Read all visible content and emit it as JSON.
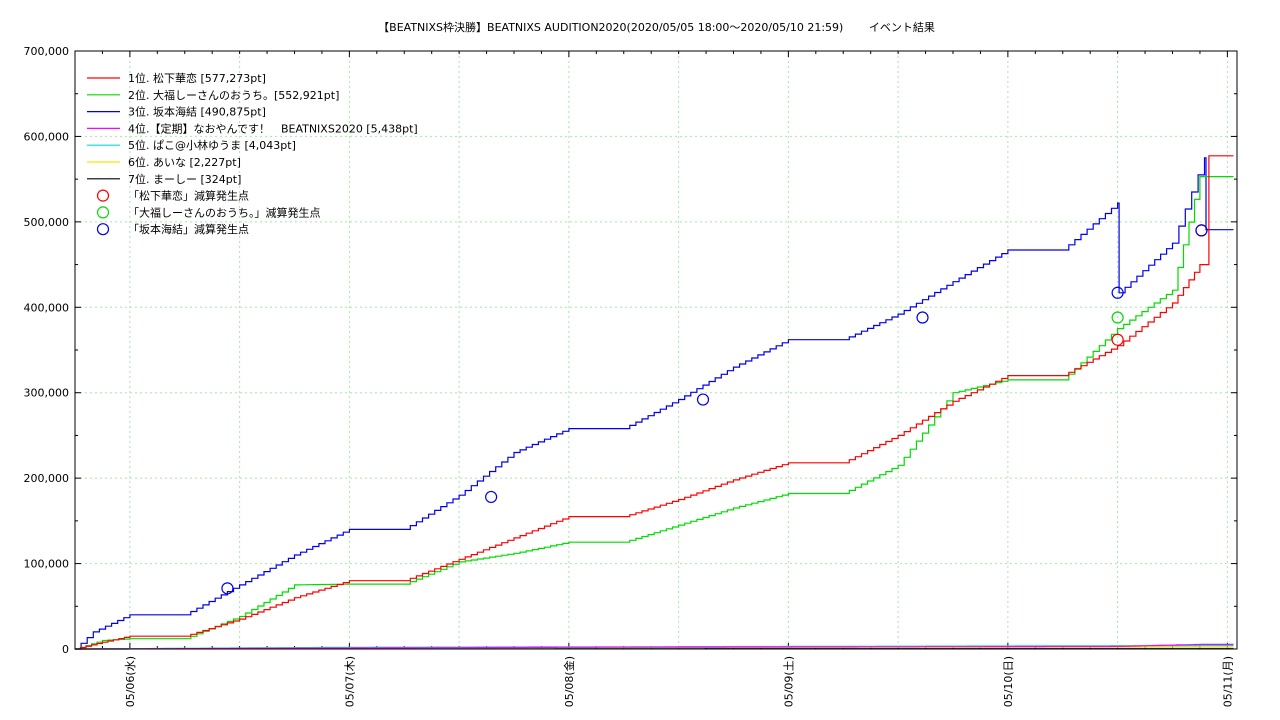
{
  "chart_data": {
    "type": "line",
    "title": "【BEATNIXS枠決勝】BEATNIXS AUDITION2020(2020/05/05 18:00〜2020/05/10 21:59)　　 イベント結果",
    "xlabel": "",
    "ylabel": "",
    "ylim": [
      0,
      700000
    ],
    "xlim": [
      "2020/05/05 18:00",
      "2020/05/11 00:40"
    ],
    "y_tick_labels": [
      "0",
      "100,000",
      "200,000",
      "300,000",
      "400,000",
      "500,000",
      "600,000",
      "700,000"
    ],
    "y_ticks": [
      0,
      100000,
      200000,
      300000,
      400000,
      500000,
      600000,
      700000
    ],
    "x_tick_labels": [
      "05/06(水)",
      "05/07(木)",
      "05/08(金)",
      "05/09(土)",
      "05/10(日)",
      "05/11(月)"
    ],
    "x_ticks_day": [
      1,
      2,
      3,
      4,
      5,
      6
    ],
    "grid": true,
    "legend_position": "top-left",
    "series": [
      {
        "name": "1位. 松下華恋 [577,273pt]",
        "color": "#ff0000",
        "points": [
          [
            "05/05 18:00",
            0
          ],
          [
            "05/05 21:00",
            8000
          ],
          [
            "05/06 00:00",
            15000
          ],
          [
            "05/06 06:00",
            15000
          ],
          [
            "05/06 12:00",
            35000
          ],
          [
            "05/06 18:00",
            60000
          ],
          [
            "05/07 00:00",
            80000
          ],
          [
            "05/07 06:00",
            80000
          ],
          [
            "05/07 12:00",
            105000
          ],
          [
            "05/07 18:00",
            130000
          ],
          [
            "05/08 00:00",
            155000
          ],
          [
            "05/08 06:00",
            155000
          ],
          [
            "05/08 12:00",
            175000
          ],
          [
            "05/08 18:00",
            198000
          ],
          [
            "05/09 00:00",
            218000
          ],
          [
            "05/09 06:00",
            218000
          ],
          [
            "05/09 12:00",
            250000
          ],
          [
            "05/09 18:00",
            290000
          ],
          [
            "05/10 00:00",
            320000
          ],
          [
            "05/10 06:00",
            320000
          ],
          [
            "05/10 12:00",
            355000
          ],
          [
            "05/10 18:00",
            405000
          ],
          [
            "05/10 21:00",
            450000
          ],
          [
            "05/10 21:59",
            577273
          ],
          [
            "05/11 00:40",
            577273
          ]
        ]
      },
      {
        "name": "2位. 大福しーさんのおうち。[552,921pt]",
        "color": "#00dd00",
        "points": [
          [
            "05/05 18:00",
            0
          ],
          [
            "05/05 21:00",
            10000
          ],
          [
            "05/06 00:00",
            12000
          ],
          [
            "05/06 06:00",
            12000
          ],
          [
            "05/06 12:00",
            38000
          ],
          [
            "05/06 18:00",
            75000
          ],
          [
            "05/07 00:00",
            76000
          ],
          [
            "05/07 06:00",
            76000
          ],
          [
            "05/07 12:00",
            102000
          ],
          [
            "05/07 18:00",
            112000
          ],
          [
            "05/08 00:00",
            125000
          ],
          [
            "05/08 06:00",
            125000
          ],
          [
            "05/08 12:00",
            145000
          ],
          [
            "05/08 18:00",
            165000
          ],
          [
            "05/09 00:00",
            182000
          ],
          [
            "05/09 06:00",
            182000
          ],
          [
            "05/09 12:00",
            215000
          ],
          [
            "05/09 18:00",
            300000
          ],
          [
            "05/10 00:00",
            315000
          ],
          [
            "05/10 06:00",
            315000
          ],
          [
            "05/10 12:00",
            375000
          ],
          [
            "05/10 18:00",
            420000
          ],
          [
            "05/10 21:00",
            552921
          ],
          [
            "05/11 00:40",
            552921
          ]
        ]
      },
      {
        "name": "3位. 坂本海結 [490,875pt]",
        "color": "#0000ee",
        "points": [
          [
            "05/05 18:00",
            0
          ],
          [
            "05/05 20:00",
            20000
          ],
          [
            "05/06 00:00",
            40000
          ],
          [
            "05/06 06:00",
            40000
          ],
          [
            "05/06 12:00",
            75000
          ],
          [
            "05/06 18:00",
            110000
          ],
          [
            "05/07 00:00",
            140000
          ],
          [
            "05/07 06:00",
            140000
          ],
          [
            "05/07 12:00",
            180000
          ],
          [
            "05/07 18:00",
            230000
          ],
          [
            "05/08 00:00",
            258000
          ],
          [
            "05/08 06:00",
            258000
          ],
          [
            "05/08 12:00",
            292000
          ],
          [
            "05/08 18:00",
            330000
          ],
          [
            "05/09 00:00",
            362000
          ],
          [
            "05/09 06:00",
            362000
          ],
          [
            "05/09 12:00",
            392000
          ],
          [
            "05/09 18:00",
            430000
          ],
          [
            "05/10 00:00",
            467000
          ],
          [
            "05/10 06:00",
            467000
          ],
          [
            "05/10 12:00",
            522000
          ],
          [
            "05/10 12:10",
            417000
          ],
          [
            "05/10 18:00",
            475000
          ],
          [
            "05/10 21:30",
            575000
          ],
          [
            "05/10 21:40",
            490875
          ],
          [
            "05/11 00:40",
            490875
          ]
        ]
      },
      {
        "name": "4位.【定期】なおやんです！　BEATNIXS2020 [5,438pt]",
        "color": "#ff00ff",
        "points": [
          [
            "05/05 18:00",
            0
          ],
          [
            "05/08 00:00",
            2000
          ],
          [
            "05/10 12:00",
            3000
          ],
          [
            "05/10 21:00",
            5438
          ],
          [
            "05/11 00:40",
            5438
          ]
        ]
      },
      {
        "name": "5位. ぱこ@小林ゆうま [4,043pt]",
        "color": "#00dddd",
        "points": [
          [
            "05/05 18:00",
            0
          ],
          [
            "05/07 00:00",
            2000
          ],
          [
            "05/09 00:00",
            3000
          ],
          [
            "05/10 21:00",
            4043
          ],
          [
            "05/11 00:40",
            4043
          ]
        ]
      },
      {
        "name": "6位. あいな [2,227pt]",
        "color": "#eeee00",
        "points": [
          [
            "05/05 18:00",
            0
          ],
          [
            "05/06 18:00",
            1500
          ],
          [
            "05/11 00:40",
            2227
          ]
        ]
      },
      {
        "name": "7位. まーしー [324pt]",
        "color": "#000000",
        "points": [
          [
            "05/05 18:00",
            0
          ],
          [
            "05/07 00:00",
            324
          ],
          [
            "05/11 00:40",
            324
          ]
        ]
      }
    ],
    "markers": [
      {
        "name": "「松下華恋」減算発生点",
        "color": "#ff0000",
        "points": [
          [
            "05/10 12:00",
            362000
          ],
          [
            "05/10 21:10",
            490000
          ]
        ]
      },
      {
        "name": "「大福しーさんのおうち。」減算発生点",
        "color": "#00dd00",
        "points": [
          [
            "05/10 12:00",
            388000
          ]
        ]
      },
      {
        "name": "「坂本海結」減算発生点",
        "color": "#0000ee",
        "points": [
          [
            "05/06 10:40",
            71000
          ],
          [
            "05/07 15:30",
            178000
          ],
          [
            "05/08 14:40",
            292000
          ],
          [
            "05/09 14:40",
            388000
          ],
          [
            "05/10 12:00",
            417000
          ],
          [
            "05/10 21:10",
            490000
          ]
        ]
      }
    ]
  }
}
